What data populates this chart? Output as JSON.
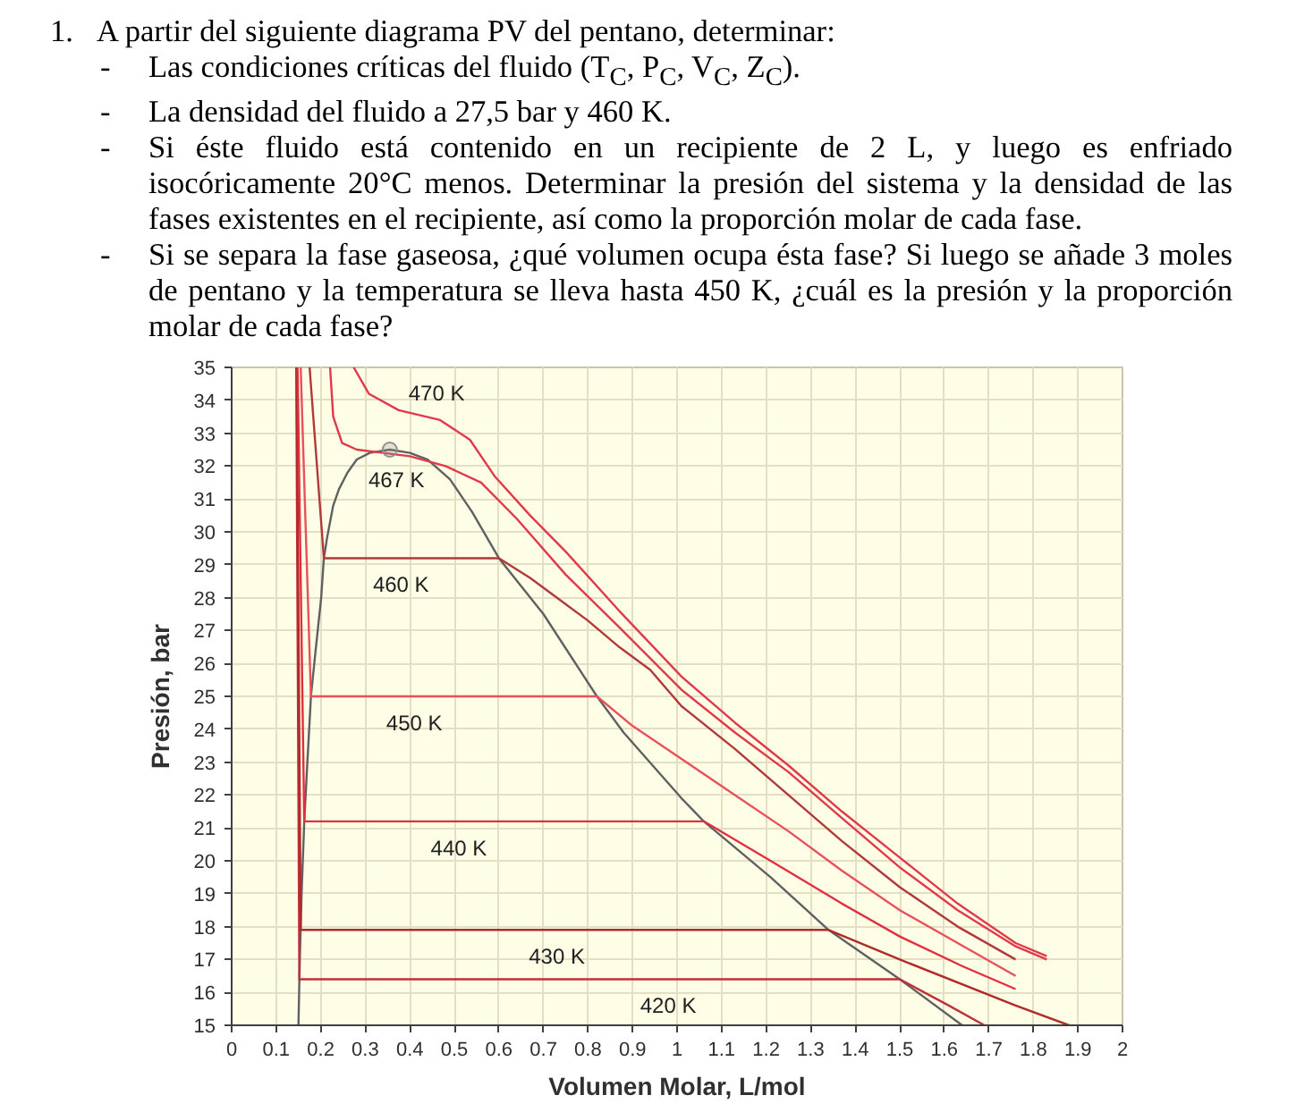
{
  "chart_data": {
    "type": "line",
    "title": "1. A partir del siguiente diagrama PV del pentano, determinar:",
    "annotations": [
      "- Las condiciones críticas del fluido (T$_{C}$, P$_{C}$, V$_{C}$, Z$_{C}$).",
      "- La densidad del fluido a 27,5 bar y 460 K.",
      "- Si éste fluido está contenido en un recipiente de 2 L, y luego es enfriado isocóricamente 20°C menos. Determinar la presión del sistema y la densidad de las fases existentes en el recipiente, así como la proporción molar de cada fase.",
      "- Si se separa la fase gaseosa, ¿qué volumen ocupa ésta fase? Si luego se añade 3 moles de pentano y la temperatura se lleva hasta 450 K, ¿cuál es la presión y la proporción molar de cada fase?",
      {
        "text": "470 K",
        "x": 0.46,
        "y": 33.4
      },
      {
        "text": "467 K",
        "x": 0.37,
        "y": 32.4
      },
      {
        "text": "460 K",
        "x": 0.38,
        "y": 29.2
      },
      {
        "text": "450 K",
        "x": 0.41,
        "y": 25
      },
      {
        "text": "440 K",
        "x": 0.51,
        "y": 21.2
      },
      {
        "text": "430 K",
        "x": 0.73,
        "y": 17.9
      },
      {
        "text": "420 K",
        "x": 0.98,
        "y": 16.4
      }
    ],
    "xlabel": "Volumen Molar, L/mol",
    "ylabel": "Presión, bar",
    "xlim": [
      0,
      2
    ],
    "ylim": [
      15,
      35
    ],
    "xticks": [
      0,
      0.1,
      0.2,
      0.3,
      0.4,
      0.5,
      0.6,
      0.7,
      0.8,
      0.9,
      1,
      1.1,
      1.2,
      1.3,
      1.4,
      1.5,
      1.6,
      1.7,
      1.8,
      1.9,
      2
    ],
    "yticks": [
      15,
      16,
      17,
      18,
      19,
      20,
      21,
      22,
      23,
      24,
      25,
      26,
      27,
      28,
      29,
      30,
      31,
      32,
      33,
      34,
      35
    ],
    "grid": true,
    "line_style": "solid",
    "series": [
      {
        "color": "#606060",
        "x": [
          0.15,
          0.153,
          0.157,
          0.163,
          0.17,
          0.178,
          0.187,
          0.201,
          0.207,
          0.214,
          0.228,
          0.241,
          0.26,
          0.281,
          0.31,
          0.355,
          0.4,
          0.44,
          0.49,
          0.54,
          0.6,
          0.7,
          0.82,
          0.88,
          1.01,
          1.06,
          1.21,
          1.34,
          1.5,
          1.64
        ],
        "values": [
          15,
          17,
          19,
          21.2,
          23,
          25,
          26.2,
          28,
          29.2,
          29.8,
          30.8,
          31.3,
          31.8,
          32.2,
          32.4,
          32.5,
          32.4,
          32.2,
          31.6,
          30.6,
          29.2,
          27.5,
          25,
          23.9,
          21.9,
          21.2,
          19.5,
          17.9,
          16.4,
          15
        ]
      },
      {
        "color": "#c03038",
        "x": [
          0.145,
          0.152,
          1.5,
          1.61,
          1.69
        ],
        "values": [
          35,
          16.4,
          16.4,
          15.6,
          15
        ]
      },
      {
        "color": "#b02a2a",
        "x": [
          0.146,
          0.155,
          1.34,
          1.5,
          1.76,
          1.88
        ],
        "values": [
          35,
          17.9,
          17.9,
          17,
          15.6,
          15
        ]
      },
      {
        "color": "#e03040",
        "x": [
          0.148,
          0.163,
          1.06,
          1.21,
          1.37,
          1.5,
          1.64,
          1.76
        ],
        "values": [
          35,
          21.2,
          21.2,
          20,
          18.7,
          17.7,
          16.8,
          16.1
        ]
      },
      {
        "color": "#e8505a",
        "x": [
          0.155,
          0.178,
          0.82,
          0.9,
          1.01,
          1.13,
          1.25,
          1.37,
          1.5,
          1.63,
          1.76
        ],
        "values": [
          35,
          25,
          25,
          24.1,
          23.1,
          22,
          20.9,
          19.7,
          18.5,
          17.5,
          16.5
        ]
      },
      {
        "color": "#b03a3a",
        "x": [
          0.175,
          0.207,
          0.6,
          0.67,
          0.74,
          0.8,
          0.87,
          0.94,
          1.01,
          1.13,
          1.25,
          1.37,
          1.5,
          1.63,
          1.76
        ],
        "values": [
          35,
          29.2,
          29.2,
          28.6,
          27.9,
          27.3,
          26.5,
          25.8,
          24.7,
          23.4,
          22,
          20.6,
          19.2,
          18,
          17
        ]
      },
      {
        "color": "#e03a4a",
        "x": [
          0.221,
          0.228,
          0.248,
          0.281,
          0.34,
          0.4,
          0.48,
          0.56,
          0.64,
          0.75,
          0.87,
          1.01,
          1.13,
          1.25,
          1.37,
          1.5,
          1.63,
          1.76,
          1.83
        ],
        "values": [
          35,
          33.5,
          32.7,
          32.5,
          32.4,
          32.3,
          32,
          31.5,
          30.4,
          28.7,
          27.1,
          25.2,
          23.9,
          22.7,
          21.3,
          19.8,
          18.5,
          17.4,
          17
        ]
      },
      {
        "color": "#e03a4a",
        "x": [
          0.274,
          0.308,
          0.375,
          0.468,
          0.535,
          0.59,
          0.67,
          0.75,
          0.87,
          1.01,
          1.13,
          1.25,
          1.37,
          1.5,
          1.63,
          1.76,
          1.83
        ],
        "values": [
          35,
          34.2,
          33.7,
          33.4,
          32.8,
          31.7,
          30.5,
          29.4,
          27.6,
          25.6,
          24.2,
          22.9,
          21.5,
          20.1,
          18.7,
          17.5,
          17.1
        ]
      },
      {
        "type": "scatter",
        "marker": "circle",
        "color": "#909090",
        "x": [
          0.355
        ],
        "values": [
          32.5
        ]
      }
    ]
  }
}
